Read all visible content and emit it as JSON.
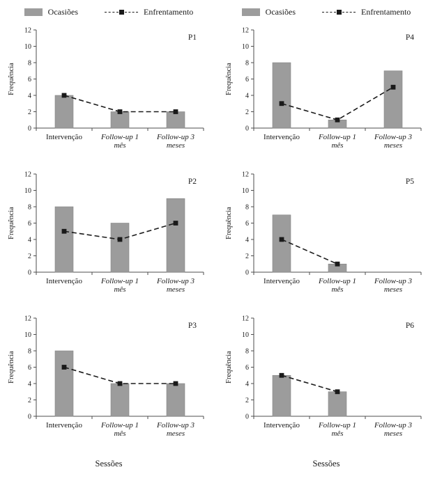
{
  "page": {
    "background": "#ffffff"
  },
  "legend": {
    "bar_label": "Ocasiões",
    "line_label": "Enfrentamento"
  },
  "axis": {
    "ylabel": "Frequência",
    "xlabel": "Sessões"
  },
  "colors": {
    "bar_fill": "#9c9c9c",
    "bar_stroke": "#858585",
    "line": "#1a1a1a",
    "axis": "#4d4d4d",
    "text": "#1a1a1a"
  },
  "chart_data": [
    {
      "type": "bar",
      "title": "P1",
      "grid_position": {
        "row": 1,
        "col": 1
      },
      "categories": [
        "Intervenção",
        "Follow-up 1 mês",
        "Follow-up 3 meses"
      ],
      "category_lines": [
        [
          "Intervenção"
        ],
        [
          "Follow-up 1",
          "mês"
        ],
        [
          "Follow-up 3",
          "meses"
        ]
      ],
      "category_italic": [
        false,
        true,
        true
      ],
      "ylabel": "Frequência",
      "ylim": [
        0,
        12
      ],
      "ytick_step": 2,
      "grid": false,
      "legend_position": "top",
      "series": [
        {
          "name": "Ocasiões",
          "style": "bar",
          "values": [
            4,
            2,
            2
          ]
        },
        {
          "name": "Enfrentamento",
          "style": "dashed-line-square-marker",
          "values": [
            4,
            2,
            2
          ]
        }
      ]
    },
    {
      "type": "bar",
      "title": "P4",
      "grid_position": {
        "row": 1,
        "col": 2
      },
      "categories": [
        "Intervenção",
        "Follow-up 1 mês",
        "Follow-up 3 meses"
      ],
      "category_lines": [
        [
          "Intervenção"
        ],
        [
          "Follow-up 1",
          "mês"
        ],
        [
          "Follow-up 3",
          "meses"
        ]
      ],
      "category_italic": [
        false,
        true,
        true
      ],
      "ylabel": "Frequência",
      "ylim": [
        0,
        12
      ],
      "ytick_step": 2,
      "grid": false,
      "legend_position": "top",
      "series": [
        {
          "name": "Ocasiões",
          "style": "bar",
          "values": [
            8,
            1,
            7
          ]
        },
        {
          "name": "Enfrentamento",
          "style": "dashed-line-square-marker",
          "values": [
            3,
            1,
            5
          ]
        }
      ]
    },
    {
      "type": "bar",
      "title": "P2",
      "grid_position": {
        "row": 2,
        "col": 1
      },
      "categories": [
        "Intervenção",
        "Follow-up 1 mês",
        "Follow-up 3 meses"
      ],
      "category_lines": [
        [
          "Intervenção"
        ],
        [
          "Follow-up 1",
          "mês"
        ],
        [
          "Follow-up 3",
          "meses"
        ]
      ],
      "category_italic": [
        false,
        true,
        true
      ],
      "ylabel": "Frequência",
      "ylim": [
        0,
        12
      ],
      "ytick_step": 2,
      "grid": false,
      "legend_position": "none",
      "series": [
        {
          "name": "Ocasiões",
          "style": "bar",
          "values": [
            8,
            6,
            9
          ]
        },
        {
          "name": "Enfrentamento",
          "style": "dashed-line-square-marker",
          "values": [
            5,
            4,
            6
          ]
        }
      ]
    },
    {
      "type": "bar",
      "title": "P5",
      "grid_position": {
        "row": 2,
        "col": 2
      },
      "categories": [
        "Intervenção",
        "Follow-up 1 mês",
        "Follow-up 3 meses"
      ],
      "category_lines": [
        [
          "Intervenção"
        ],
        [
          "Follow-up 1",
          "mês"
        ],
        [
          "Follow-up 3",
          "meses"
        ]
      ],
      "category_italic": [
        false,
        true,
        true
      ],
      "ylabel": "Frequência",
      "ylim": [
        0,
        12
      ],
      "ytick_step": 2,
      "grid": false,
      "legend_position": "none",
      "series": [
        {
          "name": "Ocasiões",
          "style": "bar",
          "values": [
            7,
            1,
            0
          ]
        },
        {
          "name": "Enfrentamento",
          "style": "dashed-line-square-marker",
          "values": [
            4,
            1,
            null
          ]
        }
      ]
    },
    {
      "type": "bar",
      "title": "P3",
      "grid_position": {
        "row": 3,
        "col": 1
      },
      "categories": [
        "Intervenção",
        "Follow-up 1 mês",
        "Follow-up 3 meses"
      ],
      "category_lines": [
        [
          "Intervenção"
        ],
        [
          "Follow-up 1",
          "mês"
        ],
        [
          "Follow-up 3",
          "meses"
        ]
      ],
      "category_italic": [
        false,
        true,
        true
      ],
      "ylabel": "Frequência",
      "ylim": [
        0,
        12
      ],
      "ytick_step": 2,
      "grid": false,
      "legend_position": "none",
      "series": [
        {
          "name": "Ocasiões",
          "style": "bar",
          "values": [
            8,
            4,
            4
          ]
        },
        {
          "name": "Enfrentamento",
          "style": "dashed-line-square-marker",
          "values": [
            6,
            4,
            4
          ]
        }
      ]
    },
    {
      "type": "bar",
      "title": "P6",
      "grid_position": {
        "row": 3,
        "col": 2
      },
      "categories": [
        "Intervenção",
        "Follow-up 1 mês",
        "Follow-up 3 meses"
      ],
      "category_lines": [
        [
          "Intervenção"
        ],
        [
          "Follow-up 1",
          "mês"
        ],
        [
          "Follow-up 3",
          "meses"
        ]
      ],
      "category_italic": [
        false,
        true,
        true
      ],
      "ylabel": "Frequência",
      "ylim": [
        0,
        12
      ],
      "ytick_step": 2,
      "grid": false,
      "legend_position": "none",
      "series": [
        {
          "name": "Ocasiões",
          "style": "bar",
          "values": [
            5,
            3,
            0
          ]
        },
        {
          "name": "Enfrentamento",
          "style": "dashed-line-square-marker",
          "values": [
            5,
            3,
            null
          ]
        }
      ]
    }
  ]
}
